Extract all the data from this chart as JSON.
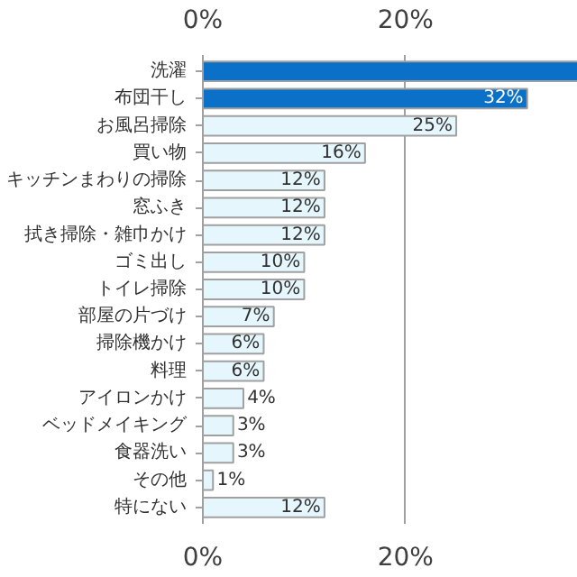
{
  "chart_data": {
    "type": "bar",
    "orientation": "horizontal",
    "categories": [
      "洗濯",
      "布団干し",
      "お風呂掃除",
      "買い物",
      "キッチンまわりの掃除",
      "窓ふき",
      "拭き掃除・雑巾かけ",
      "ゴミ出し",
      "トイレ掃除",
      "部屋の片づけ",
      "掃除機かけ",
      "料理",
      "アイロンかけ",
      "ベッドメイキング",
      "食器洗い",
      "その他",
      "特にない"
    ],
    "values": [
      37,
      32,
      25,
      16,
      12,
      12,
      12,
      10,
      10,
      7,
      6,
      6,
      4,
      3,
      3,
      1,
      12
    ],
    "value_labels": [
      null,
      "32%",
      "25%",
      "16%",
      "12%",
      "12%",
      "12%",
      "10%",
      "10%",
      "7%",
      "6%",
      "6%",
      "4%",
      "3%",
      "3%",
      "1%",
      "12%"
    ],
    "colors": [
      "#0a70c8",
      "#0a70c8",
      "#e6f6fd",
      "#e6f6fd",
      "#e6f6fd",
      "#e6f6fd",
      "#e6f6fd",
      "#e6f6fd",
      "#e6f6fd",
      "#e6f6fd",
      "#e6f6fd",
      "#e6f6fd",
      "#e6f6fd",
      "#e6f6fd",
      "#e6f6fd",
      "#e6f6fd",
      "#e6f6fd"
    ],
    "xlim": [
      0,
      37
    ],
    "xticks": [
      {
        "value": 0,
        "label": "0%"
      },
      {
        "value": 20,
        "label": "20%"
      }
    ],
    "x2lim": [
      0,
      37
    ],
    "x2ticks": [
      {
        "value": 0,
        "label": "0%"
      },
      {
        "value": 20,
        "label": "20%"
      }
    ],
    "grid": "x"
  }
}
